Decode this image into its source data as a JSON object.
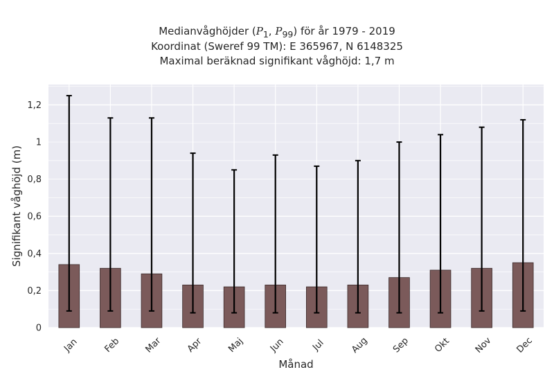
{
  "chart_data": {
    "type": "bar",
    "title": {
      "prefix": "Medianvåghöjder (",
      "p1": "P",
      "p1_sub": "1",
      "sep": ", ",
      "p2": "P",
      "p2_sub": "99",
      "suffix": ") för år 1979 - 2019"
    },
    "subtitle_line2": "Koordinat (Sweref 99 TM): E 365967, N 6148325",
    "subtitle_line3": "Maximal beräknad signifikant våghöjd: 1,7 m",
    "xlabel": "Månad",
    "ylabel": "Signifikant våghöjd (m)",
    "categories": [
      "Jan",
      "Feb",
      "Mar",
      "Apr",
      "Maj",
      "Jun",
      "Jul",
      "Aug",
      "Sep",
      "Okt",
      "Nov",
      "Dec"
    ],
    "series": [
      {
        "values": [
          0.34,
          0.32,
          0.29,
          0.23,
          0.22,
          0.23,
          0.22,
          0.23,
          0.27,
          0.31,
          0.32,
          0.35
        ],
        "p1": [
          0.09,
          0.09,
          0.09,
          0.08,
          0.08,
          0.08,
          0.08,
          0.08,
          0.08,
          0.08,
          0.09,
          0.09
        ],
        "p99": [
          1.25,
          1.13,
          1.13,
          0.94,
          0.85,
          0.93,
          0.87,
          0.9,
          1.0,
          1.04,
          1.08,
          1.12
        ]
      }
    ],
    "ylim": [
      0,
      1.31
    ],
    "yticks": [
      0,
      0.2,
      0.4,
      0.6,
      0.8,
      1,
      1.2
    ],
    "ytick_labels": [
      "0",
      "0,2",
      "0,4",
      "0,6",
      "0,8",
      "1",
      "1,2"
    ],
    "grid": true,
    "colors": {
      "bar": "#7b5a5a",
      "bar_edge": "#3a2a2a",
      "plot_bg": "#eaeaf2",
      "grid": "#ffffff",
      "errorbar": "#000000"
    }
  }
}
